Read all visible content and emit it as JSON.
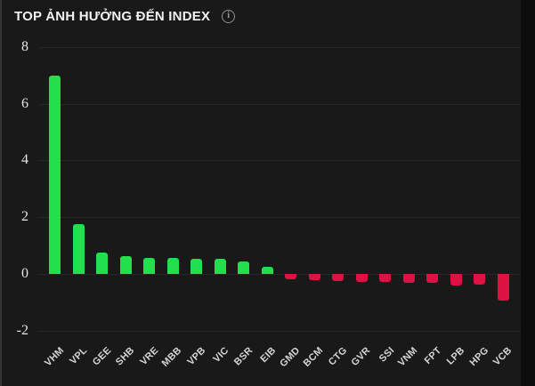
{
  "header": {
    "title": "TOP ẢNH HƯỞNG ĐẾN INDEX",
    "info_icon_glyph": "i"
  },
  "colors": {
    "panel_bg": "#191919",
    "outer_bg": "#0c0c0c",
    "gridline": "#272727",
    "positive": "#21DF4D",
    "negative": "#DD1243",
    "title_text": "#f2f2f2",
    "tick_text": "#e6e6e6"
  },
  "chart_data": {
    "type": "bar",
    "title": "TOP ẢNH HƯỞNG ĐẾN INDEX",
    "categories": [
      "VHM",
      "VPL",
      "GEE",
      "SHB",
      "VRE",
      "MBB",
      "VPB",
      "VIC",
      "BSR",
      "EIB",
      "GMD",
      "BCM",
      "CTG",
      "GVR",
      "SSI",
      "VNM",
      "FPT",
      "LPB",
      "HPG",
      "VCB"
    ],
    "values": [
      7.0,
      1.76,
      0.76,
      0.64,
      0.57,
      0.55,
      0.53,
      0.52,
      0.45,
      0.25,
      -0.2,
      -0.21,
      -0.24,
      -0.28,
      -0.29,
      -0.3,
      -0.32,
      -0.4,
      -0.37,
      -0.93
    ],
    "xlabel": "",
    "ylabel": "",
    "ylim": [
      -2,
      8
    ],
    "yticks": [
      8,
      6,
      4,
      2,
      0,
      -2
    ],
    "grid": true,
    "legend_position": "none",
    "positive_color": "#21DF4D",
    "negative_color": "#DD1243"
  }
}
